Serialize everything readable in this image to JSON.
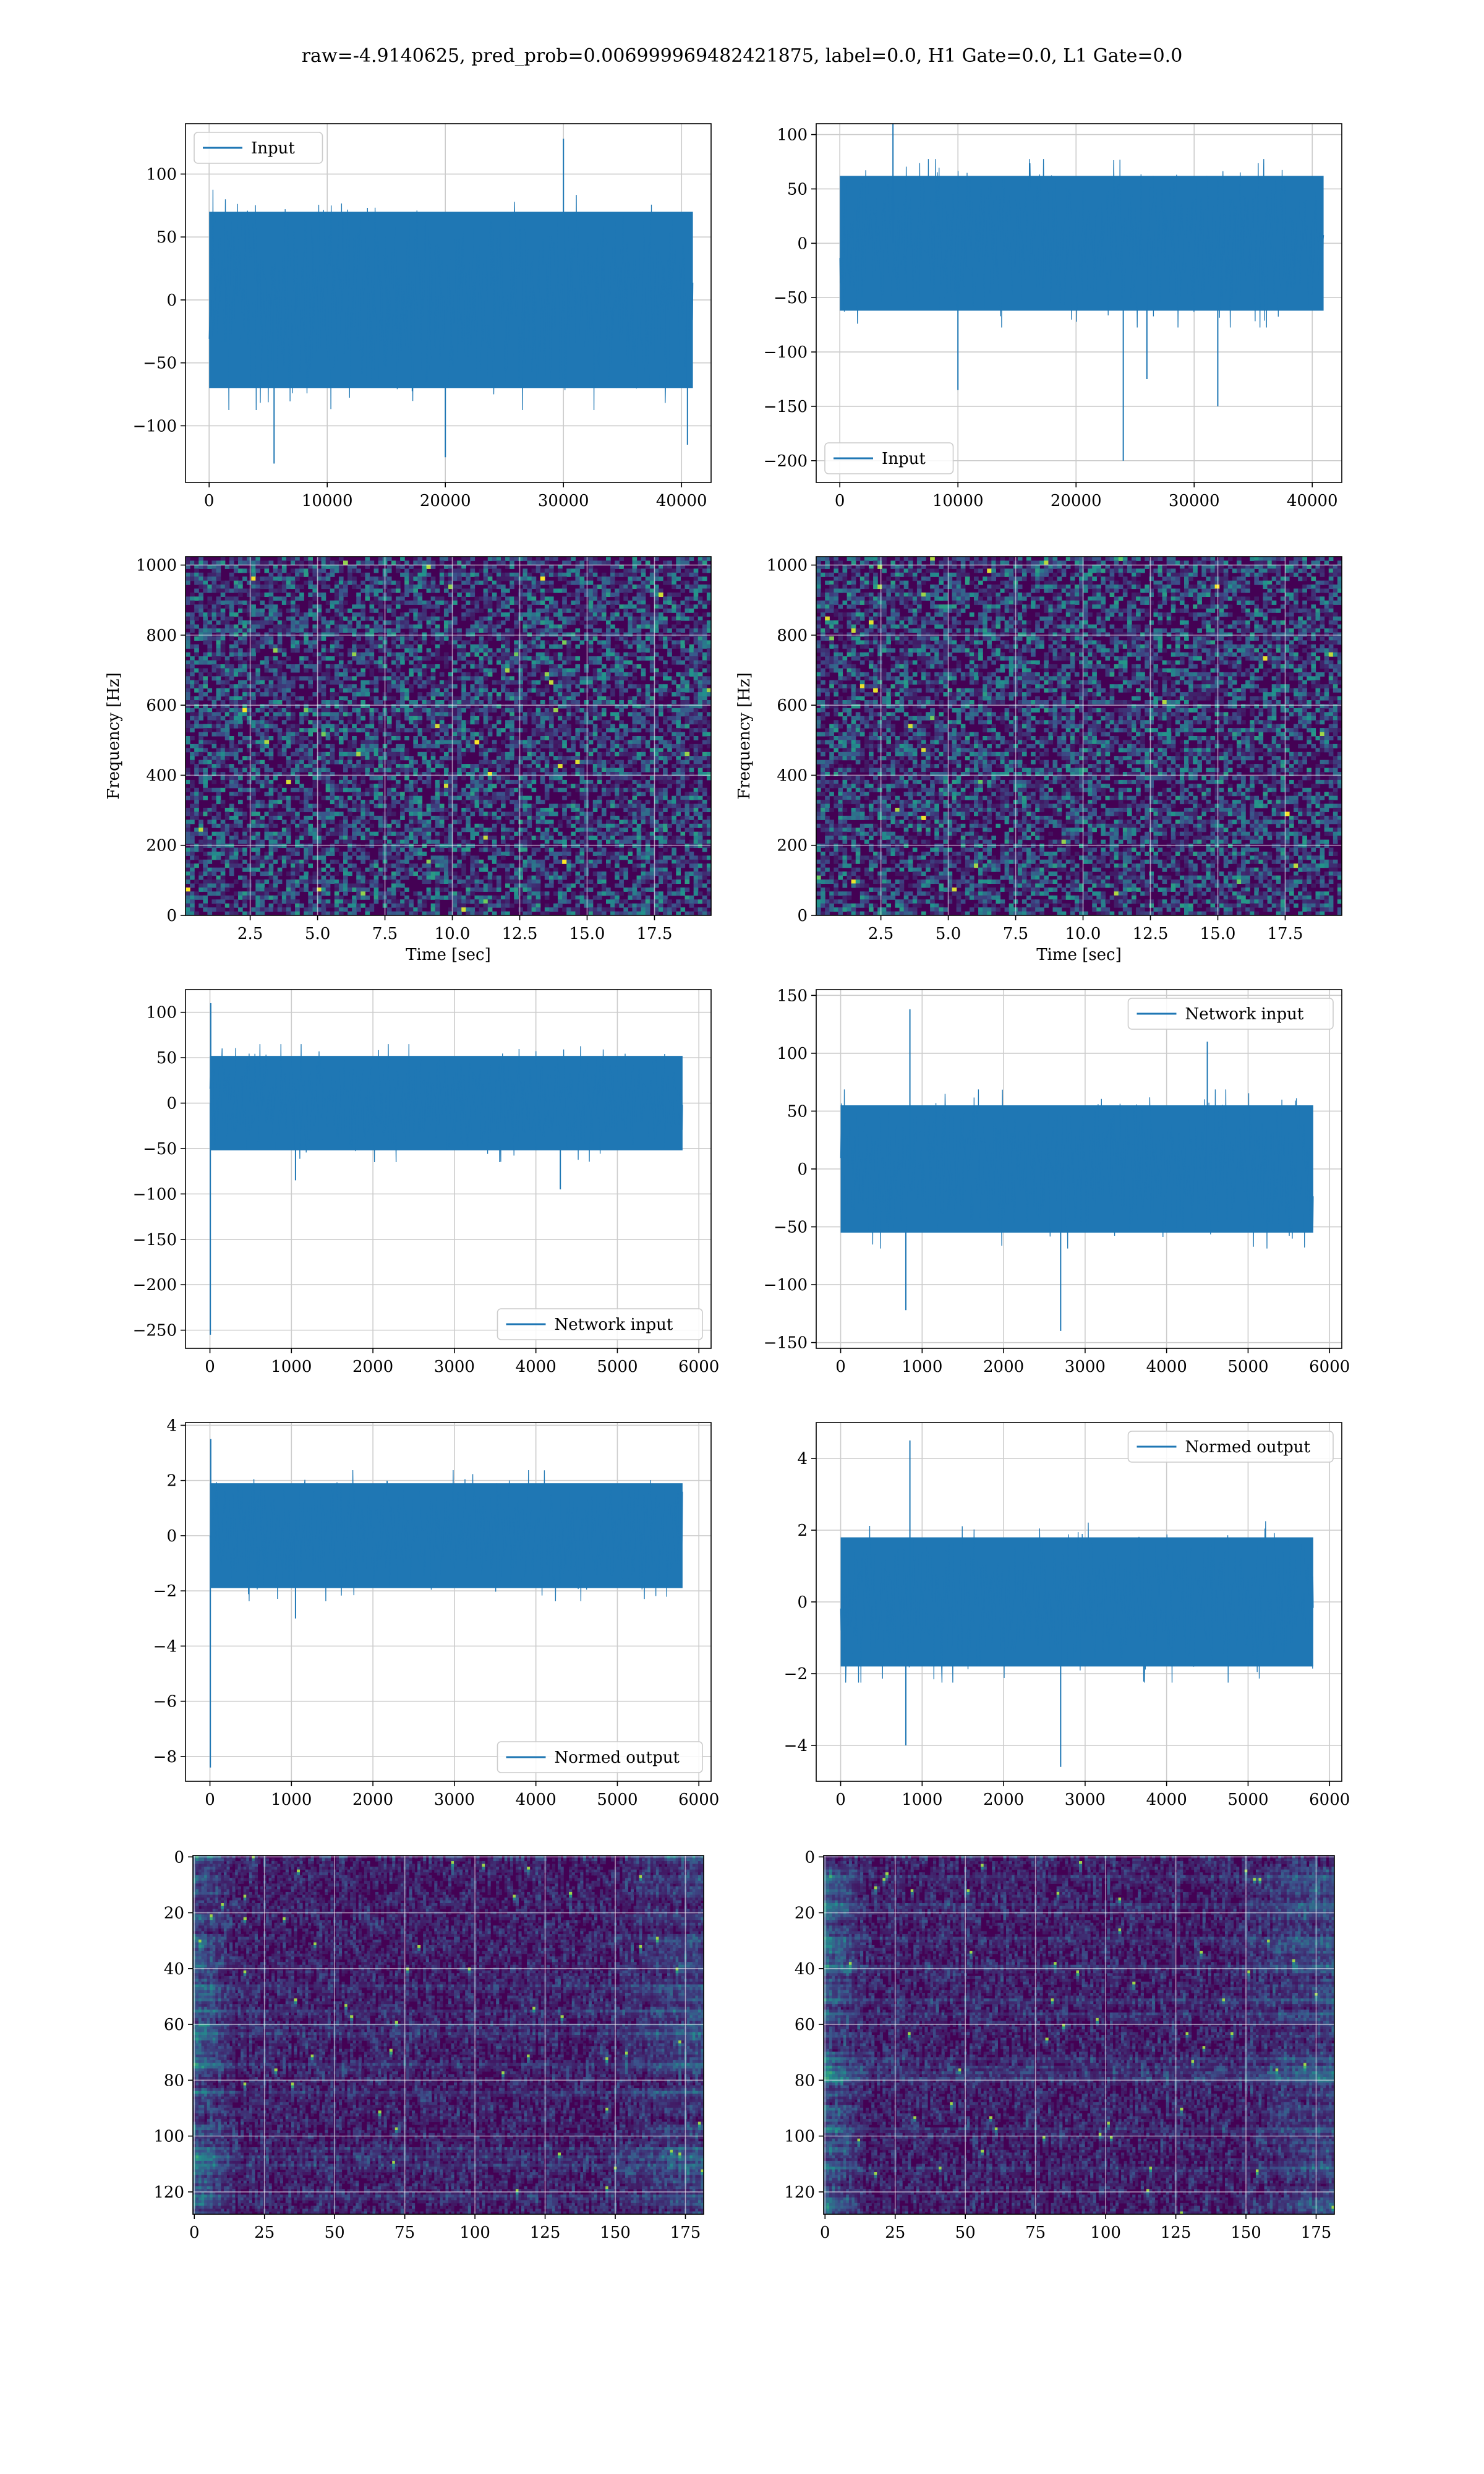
{
  "figure": {
    "title": "raw=-4.9140625, pred_prob=0.006999969482421875, label=0.0, H1 Gate=0.0, L1 Gate=0.0",
    "colors": {
      "line": "#1f77b4",
      "grid": "#cccccc",
      "spine": "#000000"
    }
  },
  "chart_data": [
    {
      "id": "p1",
      "type": "line",
      "legend": "Input",
      "legend_loc": "upper-left",
      "xlim": [
        -2000,
        42500
      ],
      "ylim": [
        -145,
        140
      ],
      "xticks": [
        0,
        10000,
        20000,
        30000,
        40000
      ],
      "xtick_labels": [
        "0",
        "10000",
        "20000",
        "30000",
        "40000"
      ],
      "yticks": [
        -100,
        -50,
        0,
        50,
        100
      ],
      "ytick_labels": [
        "−100",
        "−50",
        "0",
        "50",
        "100"
      ],
      "series": [
        {
          "name": "Input",
          "n_points": 40960,
          "x_start": 0,
          "x_end": 40960,
          "envelope": {
            "upper": 70,
            "lower": -70
          },
          "spikes": [
            {
              "x": 30000,
              "y": 128
            },
            {
              "x": 20000,
              "y": -125
            },
            {
              "x": 5500,
              "y": -130
            },
            {
              "x": 40500,
              "y": -115
            }
          ]
        }
      ]
    },
    {
      "id": "p2",
      "type": "line",
      "legend": "Input",
      "legend_loc": "lower-left",
      "xlim": [
        -2000,
        42500
      ],
      "ylim": [
        -220,
        110
      ],
      "xticks": [
        0,
        10000,
        20000,
        30000,
        40000
      ],
      "xtick_labels": [
        "0",
        "10000",
        "20000",
        "30000",
        "40000"
      ],
      "yticks": [
        -200,
        -150,
        -100,
        -50,
        0,
        50,
        100
      ],
      "ytick_labels": [
        "−200",
        "−150",
        "−100",
        "−50",
        "0",
        "50",
        "100"
      ],
      "series": [
        {
          "name": "Input",
          "n_points": 40960,
          "x_start": 0,
          "x_end": 40960,
          "envelope": {
            "upper": 62,
            "lower": -62
          },
          "spikes": [
            {
              "x": 24000,
              "y": -200
            },
            {
              "x": 32000,
              "y": -150
            },
            {
              "x": 10000,
              "y": -135
            },
            {
              "x": 4500,
              "y": 118
            },
            {
              "x": 26000,
              "y": -125
            }
          ]
        }
      ]
    },
    {
      "id": "p3",
      "type": "heatmap",
      "subtype": "spectrogram",
      "xlim": [
        0.1,
        19.6
      ],
      "ylim": [
        0,
        1024
      ],
      "xticks": [
        2.5,
        5.0,
        7.5,
        10.0,
        12.5,
        15.0,
        17.5
      ],
      "xtick_labels": [
        "2.5",
        "5.0",
        "7.5",
        "10.0",
        "12.5",
        "15.0",
        "17.5"
      ],
      "yticks": [
        0,
        200,
        400,
        600,
        800,
        1000
      ],
      "ytick_labels": [
        "0",
        "200",
        "400",
        "600",
        "800",
        "1000"
      ],
      "xlabel": "Time [sec]",
      "ylabel": "Frequency [Hz]",
      "colormap": "viridis"
    },
    {
      "id": "p4",
      "type": "heatmap",
      "subtype": "spectrogram",
      "xlim": [
        0.1,
        19.6
      ],
      "ylim": [
        0,
        1024
      ],
      "xticks": [
        2.5,
        5.0,
        7.5,
        10.0,
        12.5,
        15.0,
        17.5
      ],
      "xtick_labels": [
        "2.5",
        "5.0",
        "7.5",
        "10.0",
        "12.5",
        "15.0",
        "17.5"
      ],
      "yticks": [
        0,
        200,
        400,
        600,
        800,
        1000
      ],
      "ytick_labels": [
        "0",
        "200",
        "400",
        "600",
        "800",
        "1000"
      ],
      "xlabel": "Time [sec]",
      "ylabel": "Frequency [Hz]",
      "colormap": "viridis"
    },
    {
      "id": "p5",
      "type": "line",
      "legend": "Network input",
      "legend_loc": "lower-right",
      "xlim": [
        -300,
        6150
      ],
      "ylim": [
        -270,
        125
      ],
      "xticks": [
        0,
        1000,
        2000,
        3000,
        4000,
        5000,
        6000
      ],
      "xtick_labels": [
        "0",
        "1000",
        "2000",
        "3000",
        "4000",
        "5000",
        "6000"
      ],
      "yticks": [
        -250,
        -200,
        -150,
        -100,
        -50,
        0,
        50,
        100
      ],
      "ytick_labels": [
        "−250",
        "−200",
        "−150",
        "−100",
        "−50",
        "0",
        "50",
        "100"
      ],
      "series": [
        {
          "name": "Network input",
          "n_points": 5800,
          "x_start": 0,
          "x_end": 5800,
          "envelope": {
            "upper": 52,
            "lower": -52
          },
          "spikes": [
            {
              "x": 5,
              "y": -255
            },
            {
              "x": 10,
              "y": 110
            },
            {
              "x": 1050,
              "y": -85
            },
            {
              "x": 4300,
              "y": -95
            }
          ]
        }
      ]
    },
    {
      "id": "p6",
      "type": "line",
      "legend": "Network input",
      "legend_loc": "upper-right",
      "xlim": [
        -300,
        6150
      ],
      "ylim": [
        -155,
        155
      ],
      "xticks": [
        0,
        1000,
        2000,
        3000,
        4000,
        5000,
        6000
      ],
      "xtick_labels": [
        "0",
        "1000",
        "2000",
        "3000",
        "4000",
        "5000",
        "6000"
      ],
      "yticks": [
        -150,
        -100,
        -50,
        0,
        50,
        100,
        150
      ],
      "ytick_labels": [
        "−150",
        "−100",
        "−50",
        "0",
        "50",
        "100",
        "150"
      ],
      "series": [
        {
          "name": "Network input",
          "n_points": 5800,
          "x_start": 0,
          "x_end": 5800,
          "envelope": {
            "upper": 55,
            "lower": -55
          },
          "spikes": [
            {
              "x": 850,
              "y": 138
            },
            {
              "x": 2700,
              "y": -140
            },
            {
              "x": 800,
              "y": -122
            },
            {
              "x": 4500,
              "y": 110
            }
          ]
        }
      ]
    },
    {
      "id": "p7",
      "type": "line",
      "legend": "Normed output",
      "legend_loc": "lower-right",
      "xlim": [
        -300,
        6150
      ],
      "ylim": [
        -8.9,
        4.1
      ],
      "xticks": [
        0,
        1000,
        2000,
        3000,
        4000,
        5000,
        6000
      ],
      "xtick_labels": [
        "0",
        "1000",
        "2000",
        "3000",
        "4000",
        "5000",
        "6000"
      ],
      "yticks": [
        -8,
        -6,
        -4,
        -2,
        0,
        2,
        4
      ],
      "ytick_labels": [
        "−8",
        "−6",
        "−4",
        "−2",
        "0",
        "2",
        "4"
      ],
      "series": [
        {
          "name": "Normed output",
          "n_points": 5800,
          "x_start": 0,
          "x_end": 5800,
          "envelope": {
            "upper": 1.9,
            "lower": -1.9
          },
          "spikes": [
            {
              "x": 5,
              "y": -8.4
            },
            {
              "x": 10,
              "y": 3.5
            },
            {
              "x": 1050,
              "y": -3.0
            }
          ]
        }
      ]
    },
    {
      "id": "p8",
      "type": "line",
      "legend": "Normed output",
      "legend_loc": "upper-right",
      "xlim": [
        -300,
        6150
      ],
      "ylim": [
        -5.0,
        5.0
      ],
      "xticks": [
        0,
        1000,
        2000,
        3000,
        4000,
        5000,
        6000
      ],
      "xtick_labels": [
        "0",
        "1000",
        "2000",
        "3000",
        "4000",
        "5000",
        "6000"
      ],
      "yticks": [
        -4,
        -2,
        0,
        2,
        4
      ],
      "ytick_labels": [
        "−4",
        "−2",
        "0",
        "2",
        "4"
      ],
      "series": [
        {
          "name": "Normed output",
          "n_points": 5800,
          "x_start": 0,
          "x_end": 5800,
          "envelope": {
            "upper": 1.8,
            "lower": -1.8
          },
          "spikes": [
            {
              "x": 850,
              "y": 4.5
            },
            {
              "x": 2700,
              "y": -4.6
            },
            {
              "x": 800,
              "y": -4.0
            }
          ]
        }
      ]
    },
    {
      "id": "p9",
      "type": "heatmap",
      "subtype": "feature-map",
      "xlim": [
        -0.5,
        181.5
      ],
      "ylim": [
        128,
        -0.5
      ],
      "xticks": [
        0,
        25,
        50,
        75,
        100,
        125,
        150,
        175
      ],
      "xtick_labels": [
        "0",
        "25",
        "50",
        "75",
        "100",
        "125",
        "150",
        "175"
      ],
      "yticks": [
        0,
        20,
        40,
        60,
        80,
        100,
        120
      ],
      "ytick_labels": [
        "0",
        "20",
        "40",
        "60",
        "80",
        "100",
        "120"
      ],
      "colormap": "viridis"
    },
    {
      "id": "p10",
      "type": "heatmap",
      "subtype": "feature-map",
      "xlim": [
        -0.5,
        181.5
      ],
      "ylim": [
        128,
        -0.5
      ],
      "xticks": [
        0,
        25,
        50,
        75,
        100,
        125,
        150,
        175
      ],
      "xtick_labels": [
        "0",
        "25",
        "50",
        "75",
        "100",
        "125",
        "150",
        "175"
      ],
      "yticks": [
        0,
        20,
        40,
        60,
        80,
        100,
        120
      ],
      "ytick_labels": [
        "0",
        "20",
        "40",
        "60",
        "80",
        "100",
        "120"
      ],
      "colormap": "viridis"
    }
  ]
}
